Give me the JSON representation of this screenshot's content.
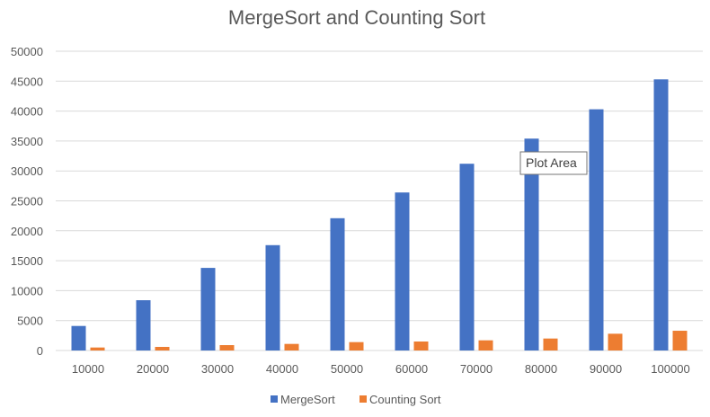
{
  "chart_data": {
    "type": "bar",
    "title": "MergeSort and Counting Sort",
    "xlabel": "",
    "ylabel": "",
    "categories": [
      "10000",
      "20000",
      "30000",
      "40000",
      "50000",
      "60000",
      "70000",
      "80000",
      "90000",
      "100000"
    ],
    "series": [
      {
        "name": "MergeSort",
        "color": "#4472c4",
        "values": [
          4100,
          8400,
          13800,
          17600,
          22100,
          26400,
          31200,
          35400,
          40300,
          45300
        ]
      },
      {
        "name": "Counting Sort",
        "color": "#ed7d31",
        "values": [
          500,
          600,
          900,
          1100,
          1400,
          1500,
          1700,
          2000,
          2800,
          3300
        ]
      }
    ],
    "ylim": [
      0,
      50000
    ],
    "yticks": [
      "0",
      "5000",
      "10000",
      "15000",
      "20000",
      "25000",
      "30000",
      "35000",
      "40000",
      "45000",
      "50000"
    ],
    "grid": true,
    "legend_position": "bottom"
  },
  "tooltip": {
    "label": "Plot Area"
  }
}
